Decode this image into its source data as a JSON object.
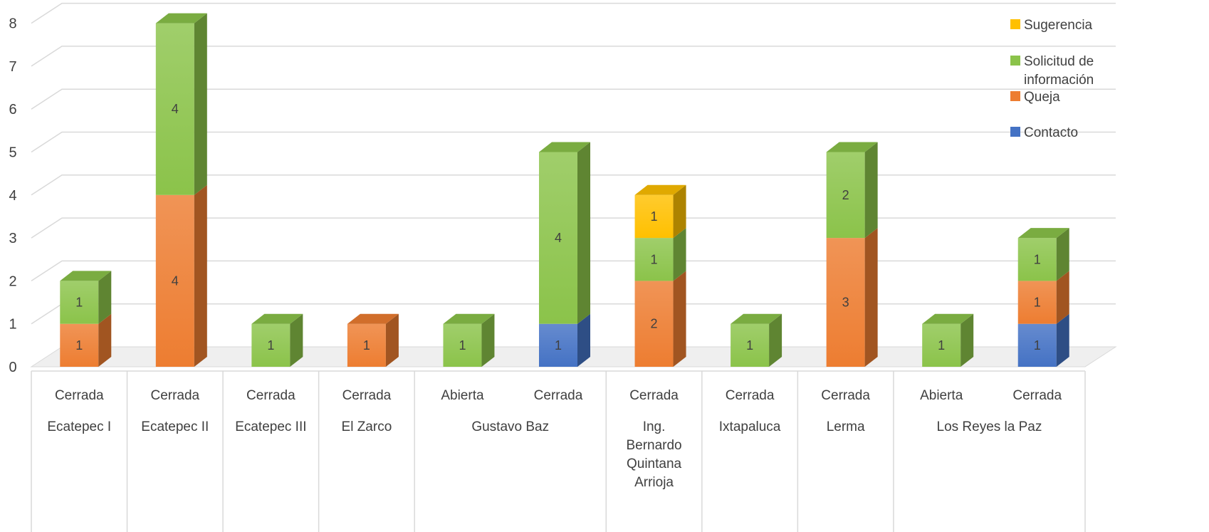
{
  "chart_data": {
    "type": "bar",
    "stacked": true,
    "three_d": true,
    "ylim": [
      0,
      8
    ],
    "y_ticks": [
      0,
      1,
      2,
      3,
      4,
      5,
      6,
      7,
      8
    ],
    "grid": true,
    "legend_position": "top-right",
    "groups": [
      {
        "label": "Ecatepec I",
        "categories": [
          "Cerrada"
        ]
      },
      {
        "label": "Ecatepec II",
        "categories": [
          "Cerrada"
        ]
      },
      {
        "label": "Ecatepec III",
        "categories": [
          "Cerrada"
        ]
      },
      {
        "label": "El Zarco",
        "categories": [
          "Cerrada"
        ]
      },
      {
        "label": "Gustavo Baz",
        "categories": [
          "Abierta",
          "Cerrada"
        ]
      },
      {
        "label": "Ing. Bernardo Quintana Arrioja",
        "label_lines": [
          "Ing.",
          "Bernardo",
          "Quintana",
          "Arrioja"
        ],
        "categories": [
          "Cerrada"
        ]
      },
      {
        "label": "Ixtapaluca",
        "categories": [
          "Cerrada"
        ]
      },
      {
        "label": "Lerma",
        "categories": [
          "Cerrada"
        ]
      },
      {
        "label": "Los Reyes la Paz",
        "categories": [
          "Abierta",
          "Cerrada"
        ]
      }
    ],
    "series": [
      {
        "name": "Contacto",
        "color": "#4472C4",
        "values": [
          0,
          0,
          0,
          0,
          0,
          1,
          0,
          0,
          0,
          0,
          1
        ]
      },
      {
        "name": "Queja",
        "color": "#ED7D31",
        "values": [
          1,
          4,
          0,
          1,
          0,
          0,
          2,
          0,
          3,
          0,
          1
        ]
      },
      {
        "name": "Solicitud de información",
        "label_lines": [
          "Solicitud de",
          "información"
        ],
        "color": "#8BC34A",
        "values": [
          1,
          4,
          1,
          0,
          1,
          4,
          1,
          1,
          2,
          1,
          1
        ]
      },
      {
        "name": "Sugerencia",
        "color": "#FFC000",
        "values": [
          0,
          0,
          0,
          0,
          0,
          0,
          1,
          0,
          0,
          0,
          0
        ]
      }
    ],
    "legend_order": [
      "Sugerencia",
      "Solicitud de información",
      "Queja",
      "Contacto"
    ]
  }
}
